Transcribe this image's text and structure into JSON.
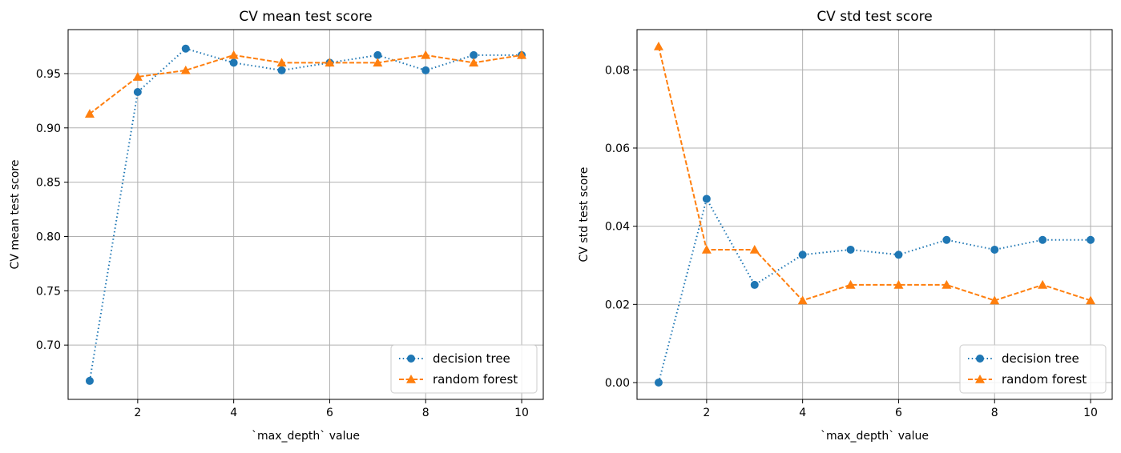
{
  "charts": [
    {
      "type": "line",
      "title": "CV mean test score",
      "xlabel": "`max_depth` value",
      "ylabel": "CV mean test score",
      "x": [
        1,
        2,
        3,
        4,
        5,
        6,
        7,
        8,
        9,
        10
      ],
      "xlim": [
        0.55,
        10.45
      ],
      "ylim": [
        0.65,
        0.9905
      ],
      "xticks": [
        2,
        4,
        6,
        8,
        10
      ],
      "yticks": [
        0.7,
        0.75,
        0.8,
        0.85,
        0.9,
        0.95
      ],
      "ytick_labels": [
        "0.70",
        "0.75",
        "0.80",
        "0.85",
        "0.90",
        "0.95"
      ],
      "grid": true,
      "legend_position": "lower-right",
      "series": [
        {
          "name": "decision tree",
          "values": [
            0.667,
            0.933,
            0.973,
            0.96,
            0.953,
            0.96,
            0.967,
            0.953,
            0.967,
            0.967
          ],
          "color": "#1f77b4",
          "linestyle": "dotted",
          "marker": "circle"
        },
        {
          "name": "random forest",
          "values": [
            0.913,
            0.947,
            0.953,
            0.967,
            0.96,
            0.96,
            0.96,
            0.967,
            0.96,
            0.967
          ],
          "color": "#ff7f0e",
          "linestyle": "dashed",
          "marker": "triangle"
        }
      ]
    },
    {
      "type": "line",
      "title": "CV std test score",
      "xlabel": "`max_depth` value",
      "ylabel": "CV std test score",
      "x": [
        1,
        2,
        3,
        4,
        5,
        6,
        7,
        8,
        9,
        10
      ],
      "xlim": [
        0.55,
        10.45
      ],
      "ylim": [
        -0.0043,
        0.0903
      ],
      "xticks": [
        2,
        4,
        6,
        8,
        10
      ],
      "yticks": [
        0.0,
        0.02,
        0.04,
        0.06,
        0.08
      ],
      "ytick_labels": [
        "0.00",
        "0.02",
        "0.04",
        "0.06",
        "0.08"
      ],
      "grid": true,
      "legend_position": "lower-right",
      "series": [
        {
          "name": "decision tree",
          "values": [
            0.0,
            0.047,
            0.025,
            0.0327,
            0.034,
            0.0327,
            0.0365,
            0.034,
            0.0365,
            0.0365
          ],
          "color": "#1f77b4",
          "linestyle": "dotted",
          "marker": "circle"
        },
        {
          "name": "random forest",
          "values": [
            0.086,
            0.034,
            0.034,
            0.021,
            0.025,
            0.025,
            0.025,
            0.021,
            0.025,
            0.021
          ],
          "color": "#ff7f0e",
          "linestyle": "dashed",
          "marker": "triangle"
        }
      ]
    }
  ]
}
